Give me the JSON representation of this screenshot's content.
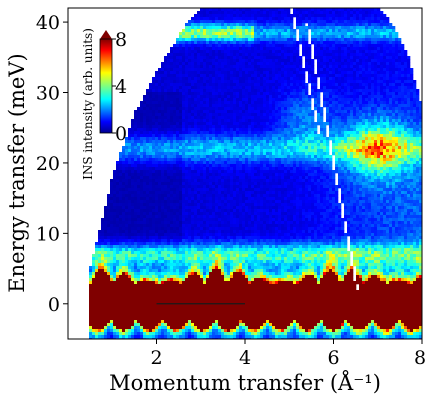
{
  "chart_data": {
    "type": "heatmap",
    "title": "",
    "xlabel": "Momentum transfer (Å⁻¹)",
    "ylabel": "Energy transfer (meV)",
    "xlim": [
      0,
      8
    ],
    "ylim": [
      -5,
      42
    ],
    "x_ticks": [
      {
        "value": 2,
        "label": "2"
      },
      {
        "value": 4,
        "label": "4"
      },
      {
        "value": 6,
        "label": "6"
      },
      {
        "value": 8,
        "label": "8"
      }
    ],
    "y_ticks": [
      {
        "value": 0,
        "label": "0"
      },
      {
        "value": 10,
        "label": "10"
      },
      {
        "value": 20,
        "label": "20"
      },
      {
        "value": 30,
        "label": "30"
      },
      {
        "value": 40,
        "label": "40"
      }
    ],
    "grid": false,
    "colormap": "jet",
    "colorbar": {
      "label": "INS intensity (arb. units)",
      "range": [
        0,
        8
      ],
      "ticks": [
        {
          "value": 0,
          "label": "0"
        },
        {
          "value": 4,
          "label": "4"
        },
        {
          "value": 8,
          "label": "8"
        }
      ],
      "extend": "max",
      "placement": "top-left inside"
    },
    "features": {
      "coverage_lower_left_q": [
        [
          0.5,
          -5
        ],
        [
          0.5,
          5
        ],
        [
          1.0,
          18
        ],
        [
          1.5,
          27
        ],
        [
          2.0,
          33
        ],
        [
          2.4,
          37
        ],
        [
          2.7,
          40
        ],
        [
          3.0,
          42
        ]
      ],
      "coverage_right_q": [
        [
          8,
          28
        ],
        [
          7.7,
          35
        ],
        [
          7.3,
          40
        ],
        [
          7.0,
          42
        ]
      ],
      "elastic_line": {
        "energy": 0,
        "width_meV": 4.5,
        "intensity": 8
      },
      "excitation_bands": [
        {
          "energy": 38.5,
          "intensity": 3.5
        },
        {
          "energy": 22,
          "intensity": 1.8
        },
        {
          "energy": 7,
          "intensity": 2.5
        }
      ],
      "phonon_spot": {
        "q": 7,
        "energy": 22,
        "intensity": 3.2
      },
      "scale_bar_q": [
        2,
        4
      ]
    }
  }
}
